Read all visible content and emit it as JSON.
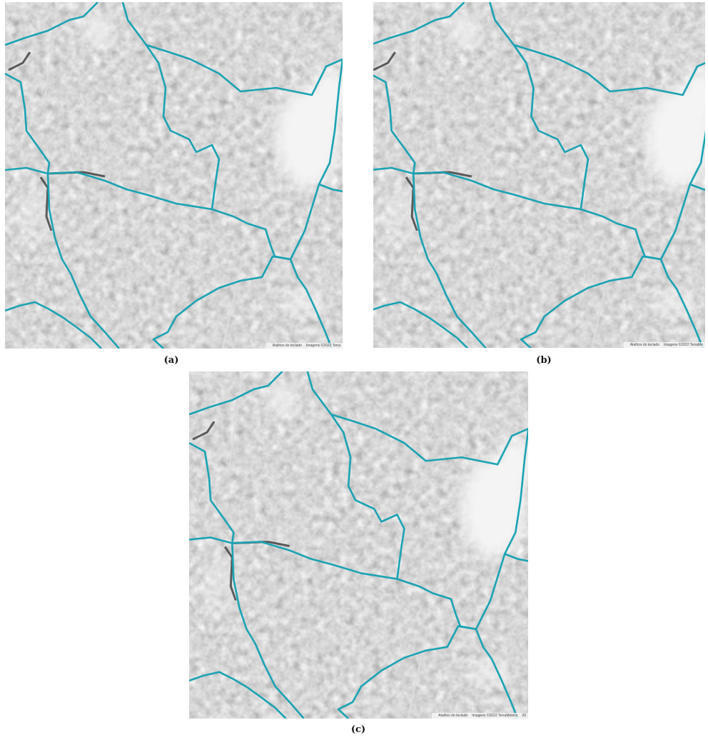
{
  "panels": [
    {
      "label": "(a)",
      "attribution": [
        "Atalhos do teclado",
        "Imagens ©2022 Terra"
      ]
    },
    {
      "label": "(b)",
      "attribution": [
        "Atalhos do teclado",
        "Imagens ©2022 TerraMe"
      ]
    },
    {
      "label": "(c)",
      "attribution": [
        "Atalhos do teclado",
        "Imagens ©2022 TerraMetrics",
        "20"
      ]
    }
  ]
}
